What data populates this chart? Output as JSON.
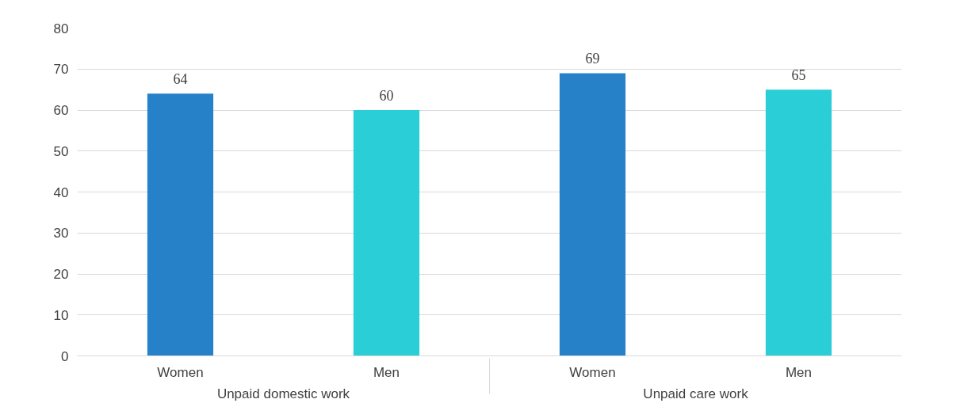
{
  "chart_data": {
    "type": "bar",
    "categories": [
      "Women",
      "Men",
      "Women",
      "Men"
    ],
    "values": [
      64,
      60,
      69,
      65
    ],
    "colors": [
      "#2681c8",
      "#29ced6",
      "#2681c8",
      "#29ced6"
    ],
    "annotations": [
      "Unpaid domestic work",
      "Unpaid care work"
    ],
    "ylim": [
      0,
      80
    ],
    "yticks": [
      0,
      10,
      20,
      30,
      40,
      50,
      60,
      70,
      80
    ],
    "grid": "y",
    "data_labels": true
  }
}
